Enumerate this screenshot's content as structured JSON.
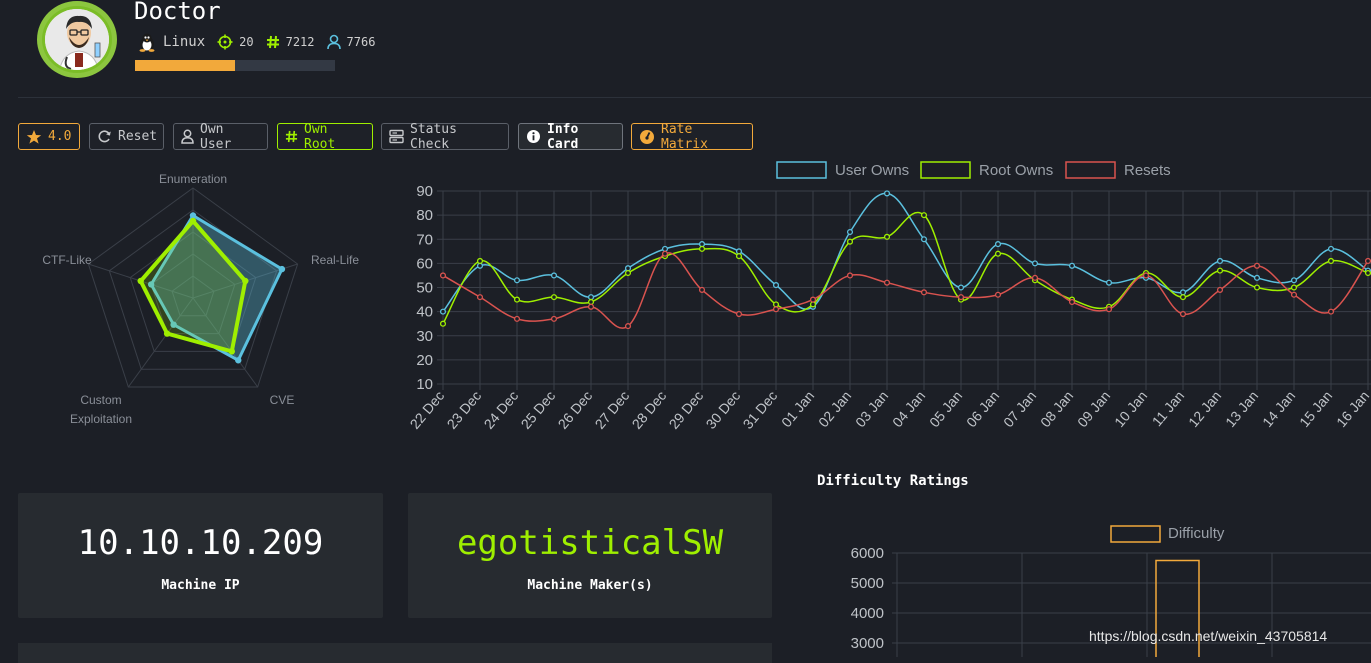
{
  "machine": {
    "name": "Doctor",
    "os": "Linux",
    "points": "20",
    "root_owns": "7212",
    "user_owns": "7766",
    "progress_percent": 50
  },
  "toolbar": {
    "rating": "4.0",
    "reset": "Reset",
    "own_user": "Own User",
    "own_root": "Own Root",
    "status_check": "Status Check",
    "info_card": "Info Card",
    "rate_matrix": "Rate Matrix"
  },
  "colors": {
    "user": "#5bc0de",
    "root": "#9fef00",
    "resets": "#d9534f",
    "accent": "#f2a93b",
    "maker": "#9fef00"
  },
  "radar": {
    "axes": [
      "Enumeration",
      "Real-Life",
      "CVE",
      "Custom Exploitation",
      "CTF-Like"
    ],
    "series": [
      {
        "name": "Maker",
        "values": [
          7.5,
          8.5,
          7,
          3,
          4
        ],
        "color": "#5bc0de"
      },
      {
        "name": "Users",
        "values": [
          7,
          5,
          6,
          4,
          5
        ],
        "color": "#9fef00"
      }
    ],
    "max": 10
  },
  "chart_data": [
    {
      "type": "line",
      "legend": [
        "User Owns",
        "Root Owns",
        "Resets"
      ],
      "categories": [
        "22 Dec",
        "23 Dec",
        "24 Dec",
        "25 Dec",
        "26 Dec",
        "27 Dec",
        "28 Dec",
        "29 Dec",
        "30 Dec",
        "31 Dec",
        "01 Jan",
        "02 Jan",
        "03 Jan",
        "04 Jan",
        "05 Jan",
        "06 Jan",
        "07 Jan",
        "08 Jan",
        "09 Jan",
        "10 Jan",
        "11 Jan",
        "12 Jan",
        "13 Jan",
        "14 Jan",
        "15 Jan",
        "16 Jan"
      ],
      "series": [
        {
          "name": "User Owns",
          "values": [
            40,
            59,
            53,
            55,
            46,
            58,
            66,
            68,
            65,
            51,
            42,
            73,
            89,
            70,
            50,
            68,
            60,
            59,
            52,
            54,
            48,
            61,
            54,
            53,
            66,
            57
          ]
        },
        {
          "name": "Root Owns",
          "values": [
            35,
            61,
            45,
            46,
            44,
            56,
            63,
            66,
            63,
            43,
            43,
            69,
            71,
            80,
            45,
            64,
            53,
            45,
            42,
            56,
            46,
            57,
            50,
            50,
            61,
            56
          ]
        },
        {
          "name": "Resets",
          "values": [
            55,
            46,
            37,
            37,
            42,
            34,
            64,
            49,
            39,
            41,
            45,
            55,
            52,
            48,
            46,
            47,
            54,
            44,
            41,
            55,
            39,
            49,
            59,
            47,
            40,
            61
          ]
        }
      ],
      "yticks": [
        "90",
        "80",
        "70",
        "60",
        "50",
        "40",
        "30",
        "20",
        "10"
      ],
      "ylim": [
        10,
        90
      ],
      "grid": true,
      "legend_position": "top"
    },
    {
      "type": "bar",
      "title": "Difficulty Ratings",
      "legend": [
        "Difficulty"
      ],
      "values": [
        5750
      ],
      "yticks": [
        "6000",
        "5000",
        "4000",
        "3000"
      ],
      "ylim": [
        3000,
        6000
      ],
      "grid": true
    }
  ],
  "cards": {
    "ip_value": "10.10.10.209",
    "ip_label": "Machine IP",
    "maker_value": "egotisticalSW",
    "maker_label": "Machine Maker(s)"
  },
  "watermark": "https://blog.csdn.net/weixin_43705814"
}
